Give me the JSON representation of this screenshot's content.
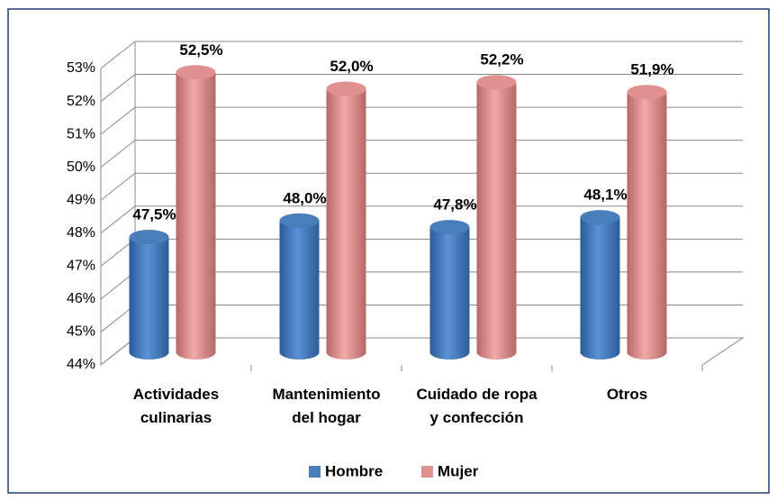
{
  "chart_data": {
    "type": "bar3d",
    "categories": [
      "Actividades\nculinarias",
      "Mantenimiento\ndel hogar",
      "Cuidado de ropa\ny confección",
      "Otros"
    ],
    "series": [
      {
        "name": "Hombre",
        "color": "#4a7ebb",
        "values": [
          47.5,
          48.0,
          47.8,
          48.1
        ],
        "value_labels": [
          "47,5%",
          "48,0%",
          "47,8%",
          "48,1%"
        ]
      },
      {
        "name": "Mujer",
        "color": "#e0918f",
        "values": [
          52.5,
          52.0,
          52.2,
          51.9
        ],
        "value_labels": [
          "52,5%",
          "52,0%",
          "52,2%",
          "51,9%"
        ]
      }
    ],
    "ylim": [
      44,
      53
    ],
    "yticks": [
      {
        "value": 44,
        "label": "44%"
      },
      {
        "value": 45,
        "label": "45%"
      },
      {
        "value": 46,
        "label": "46%"
      },
      {
        "value": 47,
        "label": "47%"
      },
      {
        "value": 48,
        "label": "48%"
      },
      {
        "value": 49,
        "label": "49%"
      },
      {
        "value": 50,
        "label": "50%"
      },
      {
        "value": 51,
        "label": "51%"
      },
      {
        "value": 52,
        "label": "52%"
      },
      {
        "value": 53,
        "label": "53%"
      }
    ],
    "grid": true,
    "legend": "bottom"
  }
}
